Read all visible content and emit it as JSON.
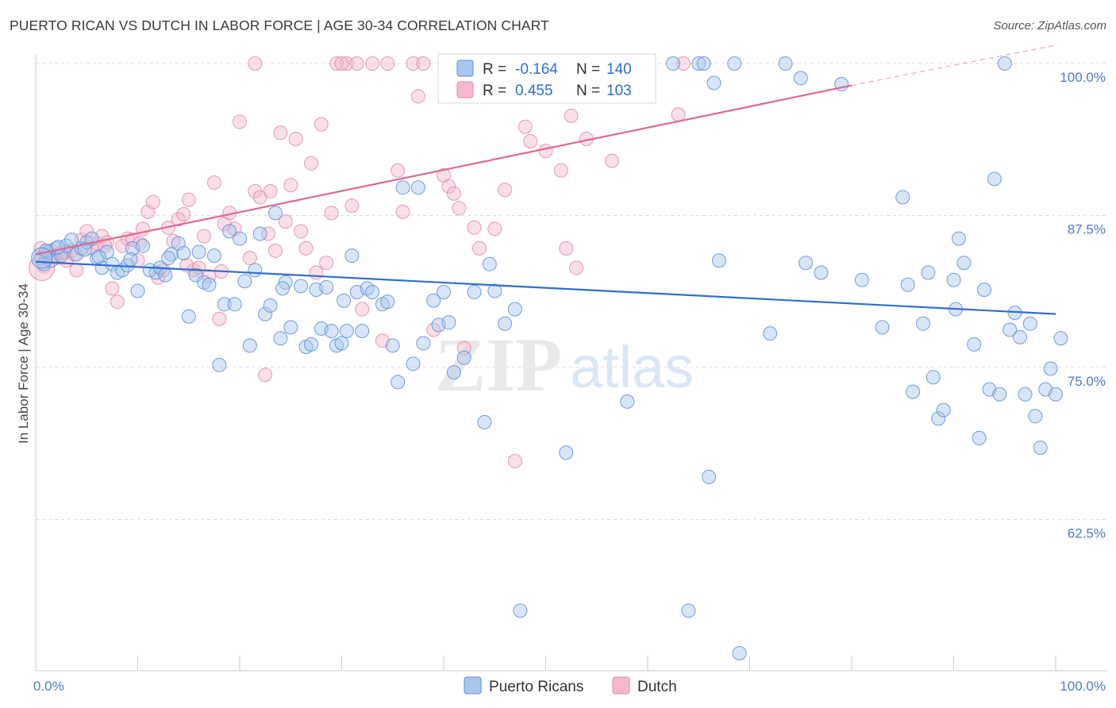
{
  "title": "PUERTO RICAN VS DUTCH IN LABOR FORCE | AGE 30-34 CORRELATION CHART",
  "source": "Source: ZipAtlas.com",
  "watermark": {
    "zip": "ZIP",
    "atlas": "atlas"
  },
  "colors": {
    "blue_fill": "#a9c6ee",
    "blue_stroke": "#5b8fd6",
    "blue_line": "#2f6fd0",
    "pink_fill": "#f5b9cc",
    "pink_stroke": "#e38aa8",
    "pink_line": "#e06894",
    "grid": "#dddddd",
    "tick_text": "#4a7cc7"
  },
  "legend": {
    "r_label": "R =",
    "n_label": "N =",
    "rows": [
      {
        "series": "Puerto Ricans",
        "r": "-0.164",
        "n": "140"
      },
      {
        "series": "Dutch",
        "r": "0.455",
        "n": "103"
      }
    ]
  },
  "chart_data": {
    "type": "scatter",
    "title": "PUERTO RICAN VS DUTCH IN LABOR FORCE | AGE 30-34 CORRELATION CHART",
    "xlabel": "",
    "ylabel": "In Labor Force | Age 30-34",
    "xlim": [
      0,
      100
    ],
    "ylim": [
      51,
      102
    ],
    "x_tick_labels": [
      {
        "value": 0,
        "label": "0.0%"
      },
      {
        "value": 100,
        "label": "100.0%"
      }
    ],
    "y_tick_labels": [
      {
        "value": 100,
        "label": "100.0%"
      },
      {
        "value": 87.5,
        "label": "87.5%"
      },
      {
        "value": 75,
        "label": "75.0%"
      },
      {
        "value": 62.5,
        "label": "62.5%"
      }
    ],
    "legend_position": "bottom",
    "series": [
      {
        "name": "Puerto Ricans",
        "r": -0.164,
        "n": 140,
        "trend": {
          "x": [
            0,
            100
          ],
          "y": [
            83.7,
            79.4
          ]
        },
        "points": [
          [
            0.5,
            84.0
          ],
          [
            0.8,
            83.5
          ],
          [
            1.2,
            84.5
          ],
          [
            1.5,
            83.8
          ],
          [
            2.0,
            84.8
          ],
          [
            2.5,
            84.2
          ],
          [
            3.0,
            85.0
          ],
          [
            3.5,
            85.5
          ],
          [
            4.0,
            84.3
          ],
          [
            4.5,
            84.8
          ],
          [
            5.0,
            85.3
          ],
          [
            5.5,
            85.6
          ],
          [
            6.0,
            84.0
          ],
          [
            6.5,
            83.2
          ],
          [
            7.0,
            84.5
          ],
          [
            7.5,
            83.5
          ],
          [
            8.0,
            82.8
          ],
          [
            8.5,
            83.0
          ],
          [
            9.0,
            83.4
          ],
          [
            9.5,
            84.8
          ],
          [
            10.0,
            81.3
          ],
          [
            10.5,
            85.0
          ],
          [
            11.2,
            83.0
          ],
          [
            11.8,
            82.8
          ],
          [
            12.2,
            83.2
          ],
          [
            12.7,
            82.6
          ],
          [
            13.3,
            84.3
          ],
          [
            14.0,
            85.2
          ],
          [
            14.5,
            84.4
          ],
          [
            15.0,
            79.2
          ],
          [
            15.7,
            82.6
          ],
          [
            16.5,
            82.0
          ],
          [
            17.0,
            81.8
          ],
          [
            17.5,
            84.2
          ],
          [
            18.0,
            75.2
          ],
          [
            18.5,
            80.2
          ],
          [
            19.0,
            86.2
          ],
          [
            19.5,
            80.2
          ],
          [
            20.0,
            85.6
          ],
          [
            20.5,
            82.1
          ],
          [
            21.0,
            76.8
          ],
          [
            21.5,
            83.0
          ],
          [
            22.0,
            86.0
          ],
          [
            22.5,
            79.4
          ],
          [
            23.0,
            80.1
          ],
          [
            23.5,
            87.7
          ],
          [
            24.0,
            77.4
          ],
          [
            24.5,
            82.0
          ],
          [
            25.0,
            78.3
          ],
          [
            26.0,
            81.7
          ],
          [
            26.5,
            76.7
          ],
          [
            27.0,
            76.9
          ],
          [
            27.5,
            81.4
          ],
          [
            28.0,
            78.2
          ],
          [
            28.5,
            81.6
          ],
          [
            29.0,
            78.0
          ],
          [
            29.5,
            76.8
          ],
          [
            30.0,
            77.0
          ],
          [
            30.5,
            78.0
          ],
          [
            31.0,
            84.2
          ],
          [
            31.5,
            81.2
          ],
          [
            32.0,
            78.0
          ],
          [
            32.5,
            81.5
          ],
          [
            33.0,
            81.2
          ],
          [
            34.0,
            80.2
          ],
          [
            34.5,
            80.4
          ],
          [
            35.0,
            76.8
          ],
          [
            35.5,
            73.8
          ],
          [
            36.0,
            89.8
          ],
          [
            37.0,
            75.3
          ],
          [
            37.5,
            89.8
          ],
          [
            38.0,
            77.0
          ],
          [
            39.0,
            80.5
          ],
          [
            39.5,
            78.5
          ],
          [
            40.0,
            81.2
          ],
          [
            40.5,
            78.7
          ],
          [
            41.0,
            74.6
          ],
          [
            42.0,
            75.8
          ],
          [
            43.0,
            81.2
          ],
          [
            44.0,
            70.5
          ],
          [
            44.5,
            83.5
          ],
          [
            45.0,
            81.3
          ],
          [
            47.0,
            79.8
          ],
          [
            47.5,
            55.0
          ],
          [
            52.0,
            68.0
          ],
          [
            56.0,
            100.0
          ],
          [
            58.0,
            72.2
          ],
          [
            62.5,
            100.0
          ],
          [
            64.0,
            55.0
          ],
          [
            65.0,
            100.0
          ],
          [
            65.5,
            100.0
          ],
          [
            66.0,
            66.0
          ],
          [
            66.5,
            98.4
          ],
          [
            67.0,
            83.8
          ],
          [
            69.0,
            51.5
          ],
          [
            68.5,
            100.0
          ],
          [
            72.0,
            77.8
          ],
          [
            73.5,
            100.0
          ],
          [
            75.0,
            98.8
          ],
          [
            75.5,
            83.6
          ],
          [
            77.0,
            82.8
          ],
          [
            79.0,
            98.3
          ],
          [
            81.0,
            82.2
          ],
          [
            83.0,
            78.3
          ],
          [
            85.0,
            89.0
          ],
          [
            85.5,
            81.8
          ],
          [
            86.0,
            73.0
          ],
          [
            87.0,
            78.6
          ],
          [
            87.5,
            82.8
          ],
          [
            88.0,
            74.2
          ],
          [
            88.5,
            70.8
          ],
          [
            89.0,
            71.5
          ],
          [
            90.0,
            82.2
          ],
          [
            90.5,
            85.6
          ],
          [
            91.0,
            83.6
          ],
          [
            92.0,
            76.9
          ],
          [
            92.5,
            69.2
          ],
          [
            93.0,
            81.4
          ],
          [
            93.5,
            73.2
          ],
          [
            94.0,
            90.5
          ],
          [
            94.5,
            72.8
          ],
          [
            95.0,
            100.0
          ],
          [
            95.5,
            78.1
          ],
          [
            96.0,
            79.5
          ],
          [
            96.5,
            77.5
          ],
          [
            97.0,
            72.8
          ],
          [
            97.5,
            78.6
          ],
          [
            98.0,
            71.0
          ],
          [
            98.5,
            68.4
          ],
          [
            99.0,
            73.2
          ],
          [
            99.5,
            74.9
          ],
          [
            100.0,
            72.8
          ],
          [
            100.5,
            77.4
          ],
          [
            1.0,
            84.6
          ],
          [
            2.2,
            84.9
          ],
          [
            4.8,
            84.7
          ],
          [
            6.2,
            84.1
          ],
          [
            9.3,
            83.9
          ],
          [
            13.0,
            84.0
          ],
          [
            16.0,
            84.5
          ],
          [
            24.2,
            81.5
          ],
          [
            30.2,
            80.5
          ],
          [
            46.0,
            78.6
          ],
          [
            90.2,
            79.8
          ]
        ]
      },
      {
        "name": "Dutch",
        "r": 0.455,
        "n": 103,
        "trend": {
          "x": [
            0,
            80
          ],
          "y": [
            84.3,
            98.2
          ]
        },
        "trend_dashed": {
          "x": [
            80,
            100
          ],
          "y": [
            98.2,
            101.5
          ]
        },
        "points": [
          [
            0.5,
            84.8
          ],
          [
            1.0,
            84.2
          ],
          [
            1.5,
            84.6
          ],
          [
            2.0,
            84.0
          ],
          [
            2.5,
            84.4
          ],
          [
            3.0,
            83.8
          ],
          [
            3.5,
            84.6
          ],
          [
            4.0,
            83.0
          ],
          [
            4.5,
            85.5
          ],
          [
            5.0,
            86.2
          ],
          [
            5.5,
            84.8
          ],
          [
            6.0,
            85.2
          ],
          [
            6.5,
            85.8
          ],
          [
            7.0,
            85.3
          ],
          [
            7.5,
            81.5
          ],
          [
            8.0,
            80.4
          ],
          [
            8.5,
            85.0
          ],
          [
            9.0,
            85.6
          ],
          [
            9.5,
            85.5
          ],
          [
            10.0,
            83.8
          ],
          [
            10.5,
            86.4
          ],
          [
            11.0,
            87.8
          ],
          [
            11.5,
            88.6
          ],
          [
            12.0,
            82.4
          ],
          [
            12.5,
            83.0
          ],
          [
            13.0,
            86.5
          ],
          [
            13.5,
            85.4
          ],
          [
            14.0,
            87.2
          ],
          [
            14.5,
            87.6
          ],
          [
            15.0,
            88.8
          ],
          [
            15.5,
            83.0
          ],
          [
            16.0,
            83.2
          ],
          [
            16.5,
            85.8
          ],
          [
            17.0,
            82.5
          ],
          [
            17.5,
            90.2
          ],
          [
            18.0,
            79.0
          ],
          [
            18.5,
            86.8
          ],
          [
            19.0,
            87.7
          ],
          [
            19.5,
            86.4
          ],
          [
            20.0,
            95.2
          ],
          [
            21.0,
            84.0
          ],
          [
            21.5,
            89.5
          ],
          [
            22.0,
            89.0
          ],
          [
            22.5,
            74.4
          ],
          [
            23.0,
            89.5
          ],
          [
            23.5,
            84.6
          ],
          [
            24.0,
            94.3
          ],
          [
            24.5,
            87.0
          ],
          [
            25.0,
            90.0
          ],
          [
            25.5,
            93.8
          ],
          [
            26.0,
            86.2
          ],
          [
            26.5,
            84.8
          ],
          [
            27.0,
            91.8
          ],
          [
            27.5,
            82.8
          ],
          [
            28.0,
            95.0
          ],
          [
            28.5,
            83.6
          ],
          [
            29.0,
            87.7
          ],
          [
            29.5,
            100.0
          ],
          [
            30.5,
            100.0
          ],
          [
            31.0,
            88.3
          ],
          [
            31.5,
            100.0
          ],
          [
            32.0,
            79.8
          ],
          [
            33.0,
            100.0
          ],
          [
            34.0,
            77.2
          ],
          [
            34.5,
            100.0
          ],
          [
            35.5,
            91.2
          ],
          [
            36.0,
            87.8
          ],
          [
            37.0,
            100.0
          ],
          [
            37.5,
            97.3
          ],
          [
            39.0,
            78.1
          ],
          [
            40.0,
            90.8
          ],
          [
            40.5,
            89.9
          ],
          [
            41.0,
            89.3
          ],
          [
            41.5,
            88.1
          ],
          [
            42.0,
            76.6
          ],
          [
            43.0,
            86.5
          ],
          [
            43.5,
            84.8
          ],
          [
            45.0,
            86.4
          ],
          [
            46.0,
            89.6
          ],
          [
            47.0,
            67.3
          ],
          [
            48.0,
            94.8
          ],
          [
            48.5,
            93.6
          ],
          [
            50.0,
            92.8
          ],
          [
            51.5,
            91.2
          ],
          [
            52.0,
            84.8
          ],
          [
            52.5,
            95.7
          ],
          [
            53.0,
            83.2
          ],
          [
            54.0,
            93.8
          ],
          [
            56.5,
            92.0
          ],
          [
            59.0,
            100.0
          ],
          [
            63.0,
            95.8
          ],
          [
            63.5,
            100.0
          ],
          [
            21.5,
            100.0
          ],
          [
            30.0,
            100.0
          ],
          [
            38.0,
            100.0
          ],
          [
            0.8,
            83.3
          ],
          [
            1.8,
            84.2
          ],
          [
            2.8,
            84.5
          ],
          [
            3.8,
            84.3
          ],
          [
            6.8,
            85.0
          ],
          [
            10.2,
            85.2
          ],
          [
            14.8,
            83.4
          ],
          [
            18.2,
            82.9
          ],
          [
            22.8,
            86.0
          ]
        ]
      }
    ]
  }
}
